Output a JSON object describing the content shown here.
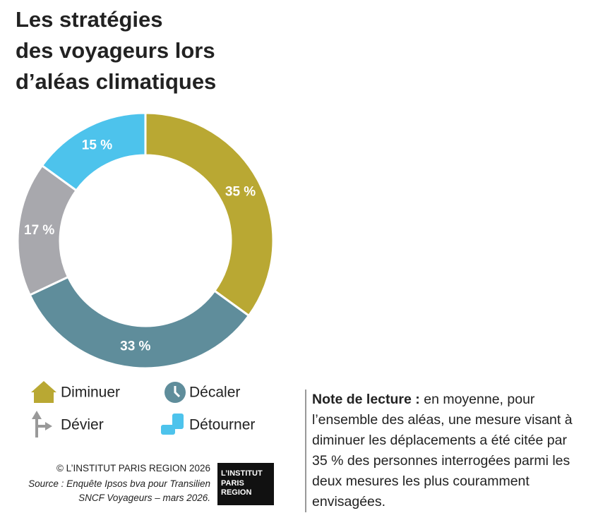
{
  "chart_data": {
    "type": "donut",
    "title": [
      "Les stratégies",
      "des voyageurs lors",
      "d’aléas climatiques"
    ],
    "categories": [
      "Diminuer",
      "Décaler",
      "Dévier",
      "Détourner"
    ],
    "values": [
      35,
      33,
      17,
      15
    ],
    "value_labels": [
      "35 %",
      "33 %",
      "17 %",
      "15 %"
    ],
    "colors": [
      "#b9a833",
      "#5f8d9b",
      "#a8a8ad",
      "#4dc3ec"
    ]
  },
  "note": {
    "label": "Note de lecture :",
    "text": "en moyenne, pour l’ensemble des aléas, une mesure visant à diminuer les déplacements a été citée par 35 % des personnes interrogées parmi les deux mesures les plus couramment envisagées."
  },
  "credits": {
    "copyright": "© L’INSTITUT PARIS REGION 2026",
    "source": [
      "Source : Enquête Ipsos bva pour Transilien",
      "SNCF Voyageurs – mars 2026."
    ]
  },
  "logo": [
    "L’INSTITUT",
    "PARIS",
    "REGION"
  ]
}
